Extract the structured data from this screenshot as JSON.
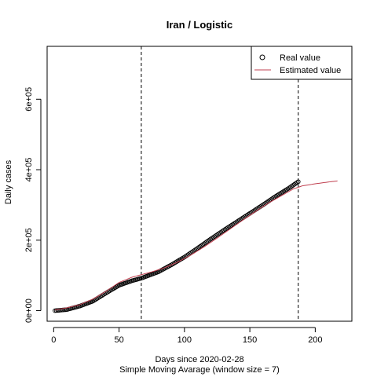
{
  "chart_data": {
    "type": "line",
    "title": "Iran / Logistic",
    "xlabel": "Days since 2020-02-28",
    "subtitle": "Simple Moving Avarage (window size = 7)",
    "ylabel": "Daily cases",
    "xlim": [
      -5,
      228
    ],
    "ylim": [
      -30000,
      750000
    ],
    "x_ticks": [
      0,
      50,
      100,
      150,
      200
    ],
    "x_tick_labels": [
      "0",
      "50",
      "100",
      "150",
      "200"
    ],
    "y_ticks": [
      0,
      200000,
      400000,
      600000
    ],
    "y_tick_labels": [
      "0e+00",
      "2e+05",
      "4e+05",
      "6e+05"
    ],
    "vlines": [
      67,
      187
    ],
    "legend_position": "top-right",
    "legend": {
      "real": "Real value",
      "estimated": "Estimated value"
    },
    "colors": {
      "real": "#000000",
      "estimated": "#c04050",
      "vline": "#000000"
    },
    "series": [
      {
        "name": "Real value",
        "style": "points",
        "x_start": 1,
        "x_end": 187,
        "knots": [
          [
            1,
            0
          ],
          [
            10,
            3000
          ],
          [
            20,
            13000
          ],
          [
            30,
            27000
          ],
          [
            40,
            50000
          ],
          [
            50,
            72000
          ],
          [
            60,
            85000
          ],
          [
            67,
            92000
          ],
          [
            80,
            110000
          ],
          [
            90,
            130000
          ],
          [
            100,
            152000
          ],
          [
            110,
            177000
          ],
          [
            120,
            203000
          ],
          [
            130,
            228000
          ],
          [
            140,
            252000
          ],
          [
            150,
            276000
          ],
          [
            160,
            300000
          ],
          [
            170,
            325000
          ],
          [
            180,
            348000
          ],
          [
            187,
            366000
          ]
        ]
      },
      {
        "name": "Estimated value",
        "style": "line",
        "knots": [
          [
            1,
            2000
          ],
          [
            10,
            8000
          ],
          [
            20,
            17000
          ],
          [
            30,
            33000
          ],
          [
            40,
            55000
          ],
          [
            50,
            80000
          ],
          [
            60,
            95000
          ],
          [
            67,
            102000
          ],
          [
            75,
            110000
          ],
          [
            85,
            122000
          ],
          [
            95,
            138000
          ],
          [
            105,
            158000
          ],
          [
            115,
            181000
          ],
          [
            125,
            206000
          ],
          [
            135,
            232000
          ],
          [
            145,
            258000
          ],
          [
            155,
            283000
          ],
          [
            165,
            307000
          ],
          [
            175,
            328000
          ],
          [
            183,
            345000
          ],
          [
            190,
            354000
          ],
          [
            200,
            360000
          ],
          [
            210,
            365000
          ],
          [
            217,
            368000
          ]
        ]
      }
    ]
  }
}
